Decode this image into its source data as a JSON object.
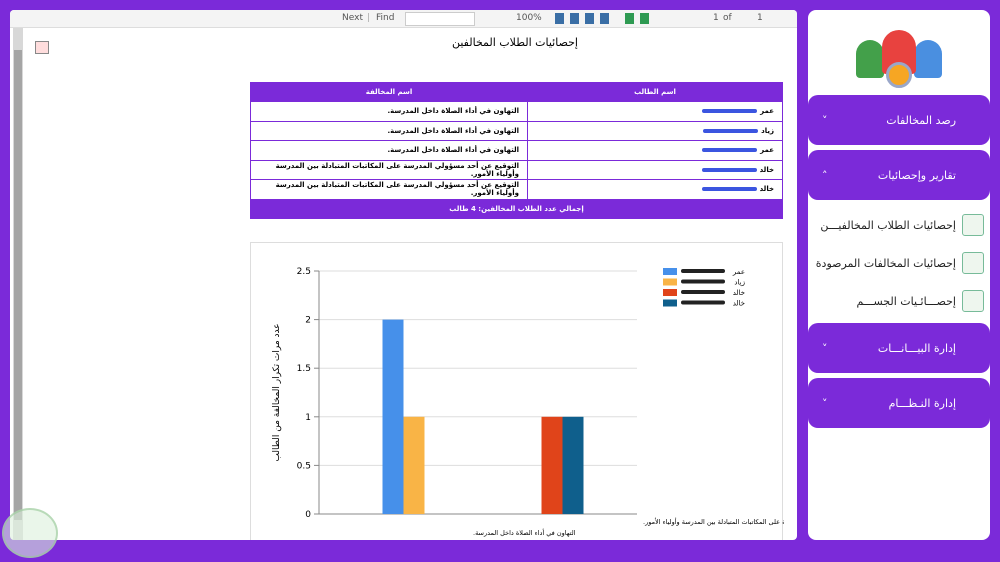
{
  "toolbar": {
    "next": "Next",
    "find": "Find",
    "zoom": "100%",
    "page": "1",
    "of": "of",
    "total": "1"
  },
  "report": {
    "title": "إحصائيات الطلاب المخالفين",
    "table": {
      "headers": [
        "اسم الطالب",
        "اسم المخالفة"
      ],
      "rows": [
        [
          "عمر",
          "التهاون في أداء الصلاة داخل المدرسة."
        ],
        [
          "زياد",
          "التهاون في أداء الصلاة داخل المدرسة."
        ],
        [
          "عمر",
          "التهاون في أداء الصلاة داخل المدرسة."
        ],
        [
          "خالد",
          "التوقيع عن أحد مسؤولي المدرسة على المكاتبات المتبادلة بين المدرسة وأولياء الأمور."
        ],
        [
          "خالد",
          "التوقيع عن أحد مسؤولي المدرسة على المكاتبات المتبادلة بين المدرسة وأولياء الأمور."
        ]
      ],
      "footer": "إجمالي عدد الطلاب المخالفين:  4 طالب"
    }
  },
  "chart_data": {
    "type": "bar",
    "y_label": "عدد مرات تكرار المخالفة من الطالب",
    "categories": [
      "التهاون في أداء الصلاة داخل المدرسة.",
      "التوقيع عن أحد مسؤولي المدرسة على المكاتبات المتبادلة بين المدرسة وأولياء الأمور."
    ],
    "series": [
      {
        "name": "عمر",
        "color": "#4690ea",
        "values": [
          2,
          null
        ]
      },
      {
        "name": "زياد",
        "color": "#f9b446",
        "values": [
          1,
          null
        ]
      },
      {
        "name": "خالد",
        "color": "#e0441a",
        "values": [
          null,
          1
        ]
      },
      {
        "name": "خالد",
        "color": "#0f5f8c",
        "values": [
          null,
          1
        ]
      }
    ],
    "ylim": [
      0,
      2.5
    ],
    "yticks": [
      0,
      0.5,
      1,
      1.5,
      2,
      2.5
    ],
    "grid": true
  },
  "sidebar": {
    "menu": [
      {
        "label": "رصد المخالفات"
      },
      {
        "label": "تقارير وإحصائيات",
        "items": [
          "إحصائيات الطلاب المخالفيـــن",
          "إحصائيات المخالفات المرصودة",
          "إحصـــائـيات الجســـم"
        ]
      },
      {
        "label": "إدارة البيـــانـــات"
      },
      {
        "label": "إدارة النـظـــام"
      }
    ]
  }
}
